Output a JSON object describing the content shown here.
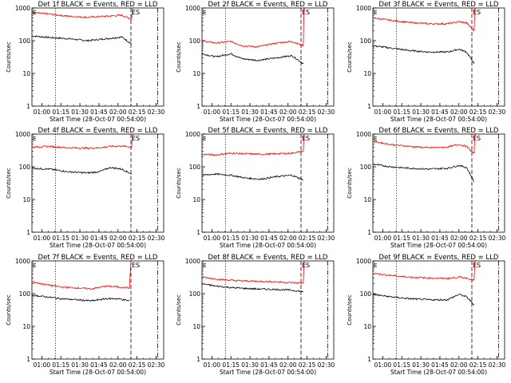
{
  "chart_data": [
    {
      "type": "line",
      "title": "Det 1f BLACK = Events, RED = LLD",
      "xlabel": "Start Time (28-Oct-07 00:54:00)",
      "ylabel": "Counts/sec",
      "xticks": [
        "01:00",
        "01:15",
        "01:30",
        "01:45",
        "02:00",
        "02:15",
        "02:30"
      ],
      "yticks": [
        "1",
        "10",
        "100",
        "1000"
      ],
      "xlim_hours": [
        0.87,
        2.6
      ],
      "ylim": [
        1,
        1000
      ],
      "yscale": "log",
      "event_marker_label": "ES",
      "series": [
        {
          "name": "Events",
          "color": "#000000",
          "x": [
            0.87,
            1.1,
            1.35,
            1.6,
            1.85,
            2.05,
            2.18
          ],
          "y": [
            140,
            125,
            115,
            100,
            115,
            130,
            80
          ]
        },
        {
          "name": "LLD",
          "color": "#ff0000",
          "x": [
            0.87,
            1.1,
            1.35,
            1.6,
            1.85,
            2.05,
            2.18,
            2.19,
            2.2
          ],
          "y": [
            720,
            650,
            560,
            520,
            560,
            600,
            450,
            1000,
            1000
          ]
        }
      ]
    },
    {
      "type": "line",
      "title": "Det 2f BLACK = Events, RED = LLD",
      "xlabel": "Start Time (28-Oct-07 00:54:00)",
      "ylabel": "Counts/sec",
      "xticks": [
        "01:00",
        "01:15",
        "01:30",
        "01:45",
        "02:00",
        "02:15",
        "02:30"
      ],
      "yticks": [
        "1",
        "10",
        "100",
        "1000"
      ],
      "xlim_hours": [
        0.87,
        2.6
      ],
      "ylim": [
        1,
        1000
      ],
      "yscale": "log",
      "event_marker_label": "ES",
      "series": [
        {
          "name": "Events",
          "color": "#000000",
          "x": [
            0.87,
            1.05,
            1.25,
            1.4,
            1.6,
            1.85,
            2.05,
            2.2
          ],
          "y": [
            40,
            32,
            40,
            28,
            25,
            30,
            35,
            20
          ]
        },
        {
          "name": "LLD",
          "color": "#ff0000",
          "x": [
            0.87,
            1.05,
            1.25,
            1.4,
            1.6,
            1.85,
            2.05,
            2.2,
            2.21,
            2.22
          ],
          "y": [
            100,
            85,
            95,
            70,
            65,
            85,
            95,
            70,
            1000,
            1000
          ]
        }
      ]
    },
    {
      "type": "line",
      "title": "Det 3f BLACK = Events, RED = LLD",
      "xlabel": "Start Time (28-Oct-07 00:54:00)",
      "ylabel": "Counts/sec",
      "xticks": [
        "01:00",
        "01:15",
        "01:30",
        "01:45",
        "02:00",
        "02:15",
        "02:30"
      ],
      "yticks": [
        "1",
        "10",
        "100",
        "1000"
      ],
      "xlim_hours": [
        0.87,
        2.6
      ],
      "ylim": [
        1,
        1000
      ],
      "yscale": "log",
      "event_marker_label": "ES",
      "series": [
        {
          "name": "Events",
          "color": "#000000",
          "x": [
            0.87,
            1.1,
            1.35,
            1.6,
            1.85,
            2.0,
            2.1,
            2.2
          ],
          "y": [
            70,
            60,
            50,
            45,
            45,
            55,
            45,
            20
          ]
        },
        {
          "name": "LLD",
          "color": "#ff0000",
          "x": [
            0.87,
            1.1,
            1.35,
            1.6,
            1.85,
            2.0,
            2.1,
            2.2,
            2.21,
            2.22
          ],
          "y": [
            500,
            420,
            360,
            330,
            330,
            380,
            350,
            200,
            1000,
            1000
          ]
        }
      ]
    },
    {
      "type": "line",
      "title": "Det 4f BLACK = Events, RED = LLD",
      "xlabel": "Start Time (28-Oct-07 00:54:00)",
      "ylabel": "Counts/sec",
      "xticks": [
        "01:00",
        "01:15",
        "01:30",
        "01:45",
        "02:00",
        "02:15",
        "02:30"
      ],
      "yticks": [
        "1",
        "10",
        "100",
        "1000"
      ],
      "xlim_hours": [
        0.87,
        2.6
      ],
      "ylim": [
        1,
        1000
      ],
      "yscale": "log",
      "event_marker_label": "ES",
      "series": [
        {
          "name": "Events",
          "color": "#000000",
          "x": [
            0.87,
            1.1,
            1.35,
            1.6,
            1.75,
            1.9,
            2.05,
            2.18
          ],
          "y": [
            90,
            85,
            70,
            65,
            70,
            95,
            85,
            60
          ]
        },
        {
          "name": "LLD",
          "color": "#ff0000",
          "x": [
            0.87,
            1.1,
            1.35,
            1.6,
            1.75,
            1.9,
            2.05,
            2.18,
            2.19,
            2.2
          ],
          "y": [
            400,
            420,
            380,
            370,
            380,
            420,
            430,
            400,
            1000,
            1000
          ]
        }
      ]
    },
    {
      "type": "line",
      "title": "Det 5f BLACK = Events, RED = LLD",
      "xlabel": "Start Time (28-Oct-07 00:54:00)",
      "ylabel": "Counts/sec",
      "xticks": [
        "01:00",
        "01:15",
        "01:30",
        "01:45",
        "02:00",
        "02:15",
        "02:30"
      ],
      "yticks": [
        "1",
        "10",
        "100",
        "1000"
      ],
      "xlim_hours": [
        0.87,
        2.6
      ],
      "ylim": [
        1,
        1000
      ],
      "yscale": "log",
      "event_marker_label": "ES",
      "series": [
        {
          "name": "Events",
          "color": "#000000",
          "x": [
            0.87,
            1.05,
            1.25,
            1.45,
            1.65,
            1.85,
            2.05,
            2.2
          ],
          "y": [
            55,
            60,
            55,
            45,
            42,
            50,
            55,
            40
          ]
        },
        {
          "name": "LLD",
          "color": "#ff0000",
          "x": [
            0.87,
            1.05,
            1.25,
            1.45,
            1.65,
            1.85,
            2.05,
            2.2,
            2.21,
            2.22
          ],
          "y": [
            240,
            230,
            260,
            250,
            240,
            250,
            260,
            300,
            1000,
            1000
          ]
        }
      ]
    },
    {
      "type": "line",
      "title": "Det 6f BLACK = Events, RED = LLD",
      "xlabel": "Start Time (28-Oct-07 00:54:00)",
      "ylabel": "Counts/sec",
      "xticks": [
        "01:00",
        "01:15",
        "01:30",
        "01:45",
        "02:00",
        "02:15",
        "02:30"
      ],
      "yticks": [
        "1",
        "10",
        "100",
        "1000"
      ],
      "xlim_hours": [
        0.87,
        2.6
      ],
      "ylim": [
        1,
        1000
      ],
      "yscale": "log",
      "event_marker_label": "ES",
      "series": [
        {
          "name": "Events",
          "color": "#000000",
          "x": [
            0.87,
            1.1,
            1.35,
            1.6,
            1.85,
            2.0,
            2.1,
            2.2
          ],
          "y": [
            120,
            100,
            90,
            85,
            90,
            110,
            95,
            35
          ]
        },
        {
          "name": "LLD",
          "color": "#ff0000",
          "x": [
            0.87,
            1.1,
            1.35,
            1.6,
            1.85,
            2.0,
            2.1,
            2.2,
            2.21,
            2.22
          ],
          "y": [
            600,
            480,
            420,
            380,
            400,
            480,
            420,
            250,
            1000,
            1000
          ]
        }
      ]
    },
    {
      "type": "line",
      "title": "Det 7f BLACK = Events, RED = LLD",
      "xlabel": "Start Time (28-Oct-07 00:54:00)",
      "ylabel": "Counts/sec",
      "xticks": [
        "01:00",
        "01:15",
        "01:30",
        "01:45",
        "02:00",
        "02:15",
        "02:30"
      ],
      "yticks": [
        "1",
        "10",
        "100",
        "1000"
      ],
      "xlim_hours": [
        0.87,
        2.6
      ],
      "ylim": [
        1,
        1000
      ],
      "yscale": "log",
      "event_marker_label": "ES",
      "series": [
        {
          "name": "Events",
          "color": "#000000",
          "x": [
            0.87,
            1.05,
            1.25,
            1.45,
            1.65,
            1.85,
            2.0,
            2.15
          ],
          "y": [
            90,
            80,
            70,
            65,
            60,
            70,
            70,
            60
          ]
        },
        {
          "name": "LLD",
          "color": "#ff0000",
          "x": [
            0.87,
            1.05,
            1.25,
            1.45,
            1.65,
            1.85,
            2.0,
            2.15,
            2.17,
            2.18
          ],
          "y": [
            230,
            190,
            160,
            150,
            140,
            170,
            160,
            150,
            1000,
            1000
          ]
        }
      ]
    },
    {
      "type": "line",
      "title": "Det 8f BLACK = Events, RED = LLD",
      "xlabel": "Start Time (28-Oct-07 00:54:00)",
      "ylabel": "Counts/sec",
      "xticks": [
        "01:00",
        "01:15",
        "01:30",
        "01:45",
        "02:00",
        "02:15",
        "02:30"
      ],
      "yticks": [
        "1",
        "10",
        "100",
        "1000"
      ],
      "xlim_hours": [
        0.87,
        2.6
      ],
      "ylim": [
        1,
        1000
      ],
      "yscale": "log",
      "event_marker_label": "ES",
      "series": [
        {
          "name": "Events",
          "color": "#000000",
          "x": [
            0.87,
            1.05,
            1.3,
            1.55,
            1.8,
            2.0,
            2.2
          ],
          "y": [
            200,
            170,
            150,
            140,
            135,
            130,
            115
          ]
        },
        {
          "name": "LLD",
          "color": "#ff0000",
          "x": [
            0.87,
            1.05,
            1.3,
            1.55,
            1.8,
            2.0,
            2.2,
            2.21,
            2.22
          ],
          "y": [
            320,
            280,
            250,
            240,
            230,
            220,
            210,
            1000,
            1000
          ]
        }
      ]
    },
    {
      "type": "line",
      "title": "Det 9f BLACK = Events, RED = LLD",
      "xlabel": "Start Time (28-Oct-07 00:54:00)",
      "ylabel": "Counts/sec",
      "xticks": [
        "01:00",
        "01:15",
        "01:30",
        "01:45",
        "02:00",
        "02:15",
        "02:30"
      ],
      "yticks": [
        "1",
        "10",
        "100",
        "1000"
      ],
      "xlim_hours": [
        0.87,
        2.6
      ],
      "ylim": [
        1,
        1000
      ],
      "yscale": "log",
      "event_marker_label": "ES",
      "series": [
        {
          "name": "Events",
          "color": "#000000",
          "x": [
            0.87,
            1.1,
            1.35,
            1.6,
            1.85,
            2.0,
            2.1,
            2.2
          ],
          "y": [
            95,
            80,
            70,
            65,
            65,
            95,
            80,
            45
          ]
        },
        {
          "name": "LLD",
          "color": "#ff0000",
          "x": [
            0.87,
            1.1,
            1.35,
            1.6,
            1.85,
            2.0,
            2.1,
            2.2,
            2.21,
            2.22
          ],
          "y": [
            420,
            360,
            320,
            300,
            290,
            320,
            300,
            260,
            1000,
            1000
          ]
        }
      ]
    }
  ]
}
